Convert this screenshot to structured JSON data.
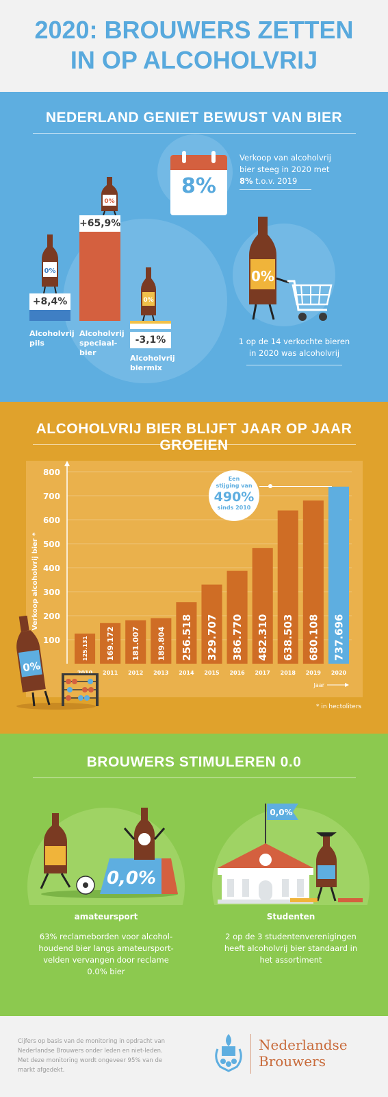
{
  "header": {
    "title_line1": "2020: BROUWERS ZETTEN",
    "title_line2": "IN OP ALCOHOLVRIJ"
  },
  "section1": {
    "title": "NEDERLAND GENIET BEWUST VAN BIER",
    "calendar_value": "8%",
    "sales_text_line1": "Verkoop van alcoholvrij",
    "sales_text_line2": "bier steeg in 2020 met",
    "sales_text_bold": "8%",
    "sales_text_tail": " t.o.v. 2019",
    "bottle_label": "0%",
    "share_line1": "1 op de 14 verkochte bieren",
    "share_line2": "in 2020 was alcoholvrij",
    "bars": [
      {
        "label": "+8,4%",
        "value": 8.4,
        "cat1": "Alcoholvrij",
        "cat2": "pils",
        "cat3": ""
      },
      {
        "label": "+65,9%",
        "value": 65.9,
        "cat1": "Alcoholvrij",
        "cat2": "speciaal-",
        "cat3": "bier"
      },
      {
        "label": "-3,1%",
        "value": -3.1,
        "cat1": "Alcoholvrij",
        "cat2": "biermix",
        "cat3": ""
      }
    ]
  },
  "chart_data": {
    "type": "bar",
    "title": "ALCOHOLVRIJ BIER BLIJFT JAAR OP JAAR GROEIEN",
    "ylabel": "Verkoop alcoholvrij bier *",
    "xlabel": "Jaar",
    "ylim": [
      0,
      800
    ],
    "yticks": [
      100,
      200,
      300,
      400,
      500,
      600,
      700,
      800
    ],
    "categories": [
      "2010",
      "2011",
      "2012",
      "2013",
      "2014",
      "2015",
      "2016",
      "2017",
      "2018",
      "2019",
      "2020"
    ],
    "values": [
      125131,
      169172,
      181007,
      189804,
      256518,
      329707,
      386770,
      482310,
      638503,
      680108,
      737696
    ],
    "value_labels": [
      "125.131",
      "169.172",
      "181.007",
      "189.804",
      "256.518",
      "329.707",
      "386.770",
      "482.310",
      "638.503",
      "680.108",
      "737.696"
    ],
    "callout": {
      "line1": "Een",
      "line2": "stijging van",
      "big": "490%",
      "line3": "sinds 2010"
    },
    "footnote": "* in hectoliters",
    "colors": {
      "bar": "#cf6d25",
      "highlight": "#5eaee0"
    }
  },
  "section3": {
    "title": "BROUWERS STIMULEREN 0.0",
    "board_text": "0,0%",
    "flag_text": "0,0%",
    "left_heading": "amateursport",
    "left_line1": "63% reclameborden voor alcohol-",
    "left_line2": "houdend bier langs amateursport-",
    "left_line3": "velden vervangen door reclame",
    "left_line4": "0.0% bier",
    "right_heading": "Studenten",
    "right_line1": "2 op de 3 studentenverenigingen",
    "right_line2": "heeft alcoholvrij bier standaard in",
    "right_line3": "het assortiment"
  },
  "footer": {
    "note_line1": "Cijfers op basis van de monitoring in opdracht van",
    "note_line2": "Nederlandse Brouwers onder leden en niet-leden.",
    "note_line3": "Met deze monitoring wordt ongeveer 95% van de",
    "note_line4": "markt afgedekt.",
    "brand_line1": "Nederlandse",
    "brand_line2": "Brouwers"
  },
  "colors": {
    "blue": "#5eaee0",
    "orange": "#cf6d25",
    "mustard": "#e0a22c",
    "green": "#8cc94f",
    "red": "#d4603f"
  }
}
